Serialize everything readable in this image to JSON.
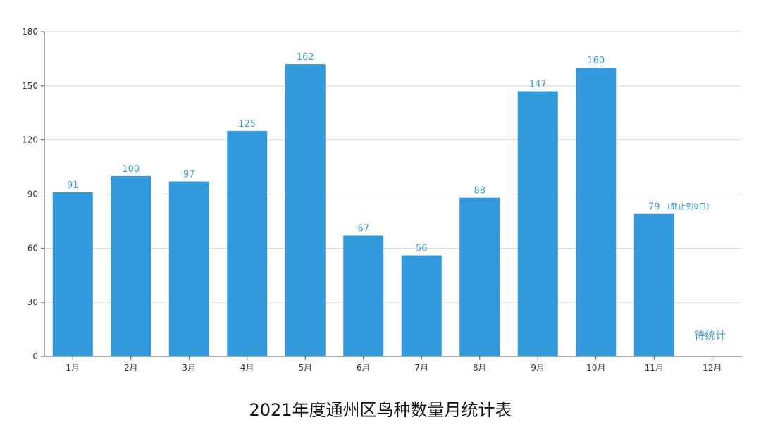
{
  "chart_data": {
    "type": "bar",
    "title": "2021年度通州区鸟种数量月统计表",
    "xlabel": "",
    "ylabel": "",
    "ylim": [
      0,
      180
    ],
    "yticks": [
      0,
      30,
      60,
      90,
      120,
      150,
      180
    ],
    "grid": true,
    "categories": [
      "1月",
      "2月",
      "3月",
      "4月",
      "5月",
      "6月",
      "7月",
      "8月",
      "9月",
      "10月",
      "11月",
      "12月"
    ],
    "values": [
      91,
      100,
      97,
      125,
      162,
      67,
      56,
      88,
      147,
      160,
      79,
      null
    ],
    "value_labels": [
      "91",
      "100",
      "97",
      "125",
      "162",
      "67",
      "56",
      "88",
      "147",
      "160",
      "79",
      ""
    ],
    "annotations": [
      {
        "category": "11月",
        "text": "（截止到9日）"
      },
      {
        "category": "12月",
        "text": "待统计"
      }
    ],
    "colors": {
      "bar": "#3399dd",
      "label": "#3d9bd8",
      "grid": "#d9d9d9",
      "axis": "#555555"
    }
  }
}
